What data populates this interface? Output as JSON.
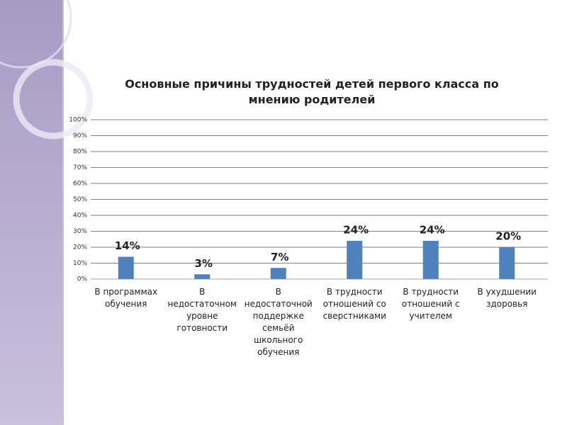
{
  "chart_data": {
    "type": "bar",
    "title": "Основные причины трудностей детей первого класса по мнению родителей",
    "categories": [
      "В программах обучения",
      "В недостаточном уровне готовности",
      "В недостаточной поддержке семьёй школьного обучения",
      "В трудности отношений со сверстниками",
      "В трудности отношений с учителем",
      "В ухудшении здоровья"
    ],
    "values": [
      14,
      3,
      7,
      24,
      24,
      20
    ],
    "value_labels": [
      "14%",
      "3%",
      "7%",
      "24%",
      "24%",
      "20%"
    ],
    "color": "#4f81bd",
    "ylim": [
      0,
      100
    ],
    "yticks": [
      {
        "value": 0,
        "label": "0%"
      },
      {
        "value": 10,
        "label": "10%"
      },
      {
        "value": 20,
        "label": "20%"
      },
      {
        "value": 30,
        "label": "30%"
      },
      {
        "value": 40,
        "label": "40%"
      },
      {
        "value": 50,
        "label": "50%"
      },
      {
        "value": 60,
        "label": "60%"
      },
      {
        "value": 70,
        "label": "70%"
      },
      {
        "value": 80,
        "label": "80%"
      },
      {
        "value": 90,
        "label": "90%"
      },
      {
        "value": 100,
        "label": "100%"
      }
    ],
    "grid": true
  }
}
